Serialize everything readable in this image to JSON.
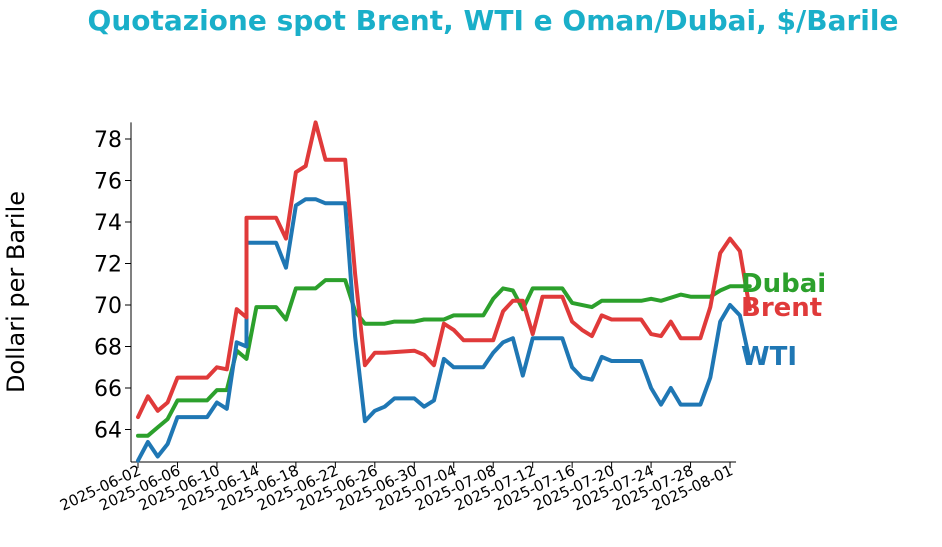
{
  "chart_data": {
    "type": "line",
    "title": "Quotazione spot Brent, WTI e Oman/Dubai, $/Barile",
    "xlabel": "",
    "ylabel": "Dollari per Barile",
    "xlim": [
      "2025-06-02",
      "2025-08-01"
    ],
    "ylim": [
      62.5,
      78.8
    ],
    "yticks": [
      64,
      66,
      68,
      70,
      72,
      74,
      76,
      78
    ],
    "xticks": [
      "2025-06-02",
      "2025-06-06",
      "2025-06-10",
      "2025-06-14",
      "2025-06-18",
      "2025-06-22",
      "2025-06-26",
      "2025-06-30",
      "2025-07-04",
      "2025-07-08",
      "2025-07-12",
      "2025-07-16",
      "2025-07-20",
      "2025-07-24",
      "2025-07-28",
      "2025-08-01"
    ],
    "grid": false,
    "legend": "end-of-line labels",
    "series": [
      {
        "name": "Brent",
        "color": "#e03a3a",
        "points": [
          [
            "2025-06-02",
            64.6
          ],
          [
            "2025-06-03",
            65.6
          ],
          [
            "2025-06-04",
            64.9
          ],
          [
            "2025-06-05",
            65.3
          ],
          [
            "2025-06-06",
            66.5
          ],
          [
            "2025-06-09",
            66.5
          ],
          [
            "2025-06-10",
            67.0
          ],
          [
            "2025-06-11",
            66.9
          ],
          [
            "2025-06-12",
            69.8
          ],
          [
            "2025-06-13",
            69.4
          ],
          [
            "2025-06-13",
            74.2
          ],
          [
            "2025-06-16",
            74.2
          ],
          [
            "2025-06-17",
            73.2
          ],
          [
            "2025-06-18",
            76.4
          ],
          [
            "2025-06-19",
            76.7
          ],
          [
            "2025-06-20",
            78.8
          ],
          [
            "2025-06-21",
            77.0
          ],
          [
            "2025-06-23",
            77.0
          ],
          [
            "2025-06-24",
            71.5
          ],
          [
            "2025-06-25",
            67.1
          ],
          [
            "2025-06-26",
            67.7
          ],
          [
            "2025-06-27",
            67.7
          ],
          [
            "2025-06-30",
            67.8
          ],
          [
            "2025-07-01",
            67.6
          ],
          [
            "2025-07-02",
            67.1
          ],
          [
            "2025-07-03",
            69.1
          ],
          [
            "2025-07-04",
            68.8
          ],
          [
            "2025-07-05",
            68.3
          ],
          [
            "2025-07-08",
            68.3
          ],
          [
            "2025-07-09",
            69.7
          ],
          [
            "2025-07-10",
            70.2
          ],
          [
            "2025-07-11",
            70.2
          ],
          [
            "2025-07-12",
            68.6
          ],
          [
            "2025-07-13",
            70.4
          ],
          [
            "2025-07-15",
            70.4
          ],
          [
            "2025-07-16",
            69.2
          ],
          [
            "2025-07-17",
            68.8
          ],
          [
            "2025-07-18",
            68.5
          ],
          [
            "2025-07-19",
            69.5
          ],
          [
            "2025-07-20",
            69.3
          ],
          [
            "2025-07-23",
            69.3
          ],
          [
            "2025-07-24",
            68.6
          ],
          [
            "2025-07-25",
            68.5
          ],
          [
            "2025-07-26",
            69.2
          ],
          [
            "2025-07-27",
            68.4
          ],
          [
            "2025-07-29",
            68.4
          ],
          [
            "2025-07-30",
            69.9
          ],
          [
            "2025-07-31",
            72.5
          ],
          [
            "2025-08-01",
            73.2
          ],
          [
            "2025-08-02",
            72.6
          ],
          [
            "2025-08-03",
            69.8
          ]
        ]
      },
      {
        "name": "WTI",
        "color": "#1f77b4",
        "points": [
          [
            "2025-06-02",
            62.5
          ],
          [
            "2025-06-03",
            63.4
          ],
          [
            "2025-06-04",
            62.7
          ],
          [
            "2025-06-05",
            63.3
          ],
          [
            "2025-06-06",
            64.6
          ],
          [
            "2025-06-09",
            64.6
          ],
          [
            "2025-06-10",
            65.3
          ],
          [
            "2025-06-11",
            65.0
          ],
          [
            "2025-06-12",
            68.2
          ],
          [
            "2025-06-13",
            68.0
          ],
          [
            "2025-06-13",
            73.0
          ],
          [
            "2025-06-16",
            73.0
          ],
          [
            "2025-06-17",
            71.8
          ],
          [
            "2025-06-18",
            74.8
          ],
          [
            "2025-06-19",
            75.1
          ],
          [
            "2025-06-20",
            75.1
          ],
          [
            "2025-06-21",
            74.9
          ],
          [
            "2025-06-23",
            74.9
          ],
          [
            "2025-06-24",
            68.5
          ],
          [
            "2025-06-25",
            64.4
          ],
          [
            "2025-06-26",
            64.9
          ],
          [
            "2025-06-27",
            65.1
          ],
          [
            "2025-06-28",
            65.5
          ],
          [
            "2025-06-30",
            65.5
          ],
          [
            "2025-07-01",
            65.1
          ],
          [
            "2025-07-02",
            65.4
          ],
          [
            "2025-07-03",
            67.4
          ],
          [
            "2025-07-04",
            67.0
          ],
          [
            "2025-07-07",
            67.0
          ],
          [
            "2025-07-08",
            67.7
          ],
          [
            "2025-07-09",
            68.2
          ],
          [
            "2025-07-10",
            68.4
          ],
          [
            "2025-07-11",
            66.6
          ],
          [
            "2025-07-12",
            68.4
          ],
          [
            "2025-07-15",
            68.4
          ],
          [
            "2025-07-16",
            67.0
          ],
          [
            "2025-07-17",
            66.5
          ],
          [
            "2025-07-18",
            66.4
          ],
          [
            "2025-07-19",
            67.5
          ],
          [
            "2025-07-20",
            67.3
          ],
          [
            "2025-07-23",
            67.3
          ],
          [
            "2025-07-24",
            66.0
          ],
          [
            "2025-07-25",
            65.2
          ],
          [
            "2025-07-26",
            66.0
          ],
          [
            "2025-07-27",
            65.2
          ],
          [
            "2025-07-29",
            65.2
          ],
          [
            "2025-07-30",
            66.5
          ],
          [
            "2025-07-31",
            69.2
          ],
          [
            "2025-08-01",
            70.0
          ],
          [
            "2025-08-02",
            69.5
          ],
          [
            "2025-08-03",
            67.3
          ]
        ]
      },
      {
        "name": "Dubai",
        "color": "#2ca02c",
        "points": [
          [
            "2025-06-02",
            63.7
          ],
          [
            "2025-06-03",
            63.7
          ],
          [
            "2025-06-04",
            64.1
          ],
          [
            "2025-06-05",
            64.5
          ],
          [
            "2025-06-06",
            65.4
          ],
          [
            "2025-06-09",
            65.4
          ],
          [
            "2025-06-10",
            65.9
          ],
          [
            "2025-06-11",
            65.9
          ],
          [
            "2025-06-12",
            67.8
          ],
          [
            "2025-06-13",
            67.4
          ],
          [
            "2025-06-14",
            69.9
          ],
          [
            "2025-06-16",
            69.9
          ],
          [
            "2025-06-17",
            69.3
          ],
          [
            "2025-06-18",
            70.8
          ],
          [
            "2025-06-20",
            70.8
          ],
          [
            "2025-06-21",
            71.2
          ],
          [
            "2025-06-23",
            71.2
          ],
          [
            "2025-06-24",
            69.7
          ],
          [
            "2025-06-25",
            69.1
          ],
          [
            "2025-06-27",
            69.1
          ],
          [
            "2025-06-28",
            69.2
          ],
          [
            "2025-06-30",
            69.2
          ],
          [
            "2025-07-01",
            69.3
          ],
          [
            "2025-07-03",
            69.3
          ],
          [
            "2025-07-04",
            69.5
          ],
          [
            "2025-07-07",
            69.5
          ],
          [
            "2025-07-08",
            70.3
          ],
          [
            "2025-07-09",
            70.8
          ],
          [
            "2025-07-10",
            70.7
          ],
          [
            "2025-07-11",
            69.8
          ],
          [
            "2025-07-12",
            70.8
          ],
          [
            "2025-07-15",
            70.8
          ],
          [
            "2025-07-16",
            70.1
          ],
          [
            "2025-07-18",
            69.9
          ],
          [
            "2025-07-19",
            70.2
          ],
          [
            "2025-07-23",
            70.2
          ],
          [
            "2025-07-24",
            70.3
          ],
          [
            "2025-07-25",
            70.2
          ],
          [
            "2025-07-27",
            70.5
          ],
          [
            "2025-07-28",
            70.4
          ],
          [
            "2025-07-30",
            70.4
          ],
          [
            "2025-07-31",
            70.7
          ],
          [
            "2025-08-01",
            70.9
          ],
          [
            "2025-08-03",
            70.9
          ]
        ]
      }
    ],
    "end_labels": [
      {
        "series": "Dubai",
        "text": "Dubai",
        "color": "#2ca02c"
      },
      {
        "series": "Brent",
        "text": "Brent",
        "color": "#e03a3a"
      },
      {
        "series": "WTI",
        "text": "WTI",
        "color": "#1f77b4"
      }
    ]
  }
}
